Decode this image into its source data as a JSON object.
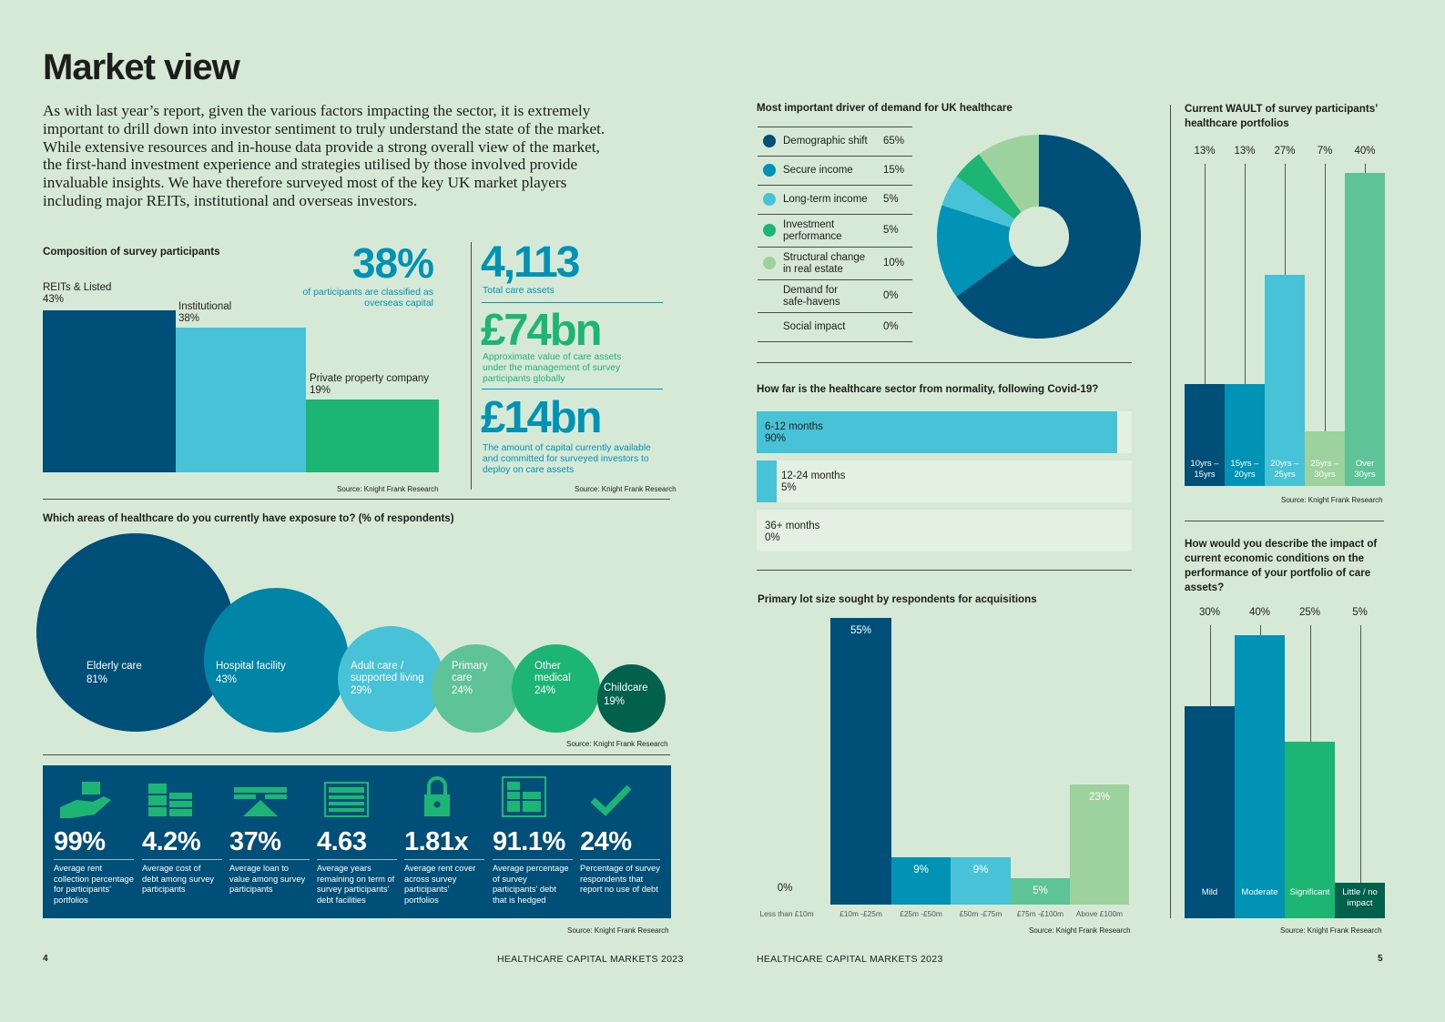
{
  "title": "Market view",
  "intro": "As with last year’s report, given the various factors impacting the sector, it is extremely important to drill down into investor sentiment to truly understand the state of the market. While extensive resources and in-house data provide a strong overall view of the market, the first-hand investment experience and strategies utilised by those involved provide invaluable insights. We have therefore surveyed most of the key UK market players including major REITs, institutional and overseas investors.",
  "source": "Source: Knight Frank Research",
  "composition": {
    "title": "Composition of survey participants",
    "items": [
      {
        "name": "REITs & Listed",
        "pct": "43%"
      },
      {
        "name": "Institutional",
        "pct": "38%"
      },
      {
        "name": "Private property company",
        "pct": "19%"
      }
    ]
  },
  "stats": {
    "overseas_value": "38%",
    "overseas_label": "of participants are classified as overseas capital",
    "care_assets_value": "4,113",
    "care_assets_label": "Total care assets",
    "value_74": "£74bn",
    "value_74_label": "Approximate value of care assets under the management of survey participants globally",
    "value_14": "£14bn",
    "value_14_label": "The amount of capital currently available and committed for surveyed investors to deploy on care assets"
  },
  "exposure": {
    "title": "Which areas of healthcare do you currently have exposure to? (% of respondents)",
    "items": [
      {
        "name": "Elderly care",
        "pct": "81%"
      },
      {
        "name": "Hospital facility",
        "pct": "43%"
      },
      {
        "name": "Adult care / supported living",
        "pct": "29%"
      },
      {
        "name": "Primary care",
        "pct": "24%"
      },
      {
        "name": "Other medical",
        "pct": "24%"
      },
      {
        "name": "Childcare",
        "pct": "19%"
      }
    ]
  },
  "kpis": [
    {
      "icon": "hand-money-icon",
      "value": "99%",
      "label": "Average rent collection percentage for participants’ portfolios"
    },
    {
      "icon": "buildings-icon",
      "value": "4.2%",
      "label": "Average cost of debt among survey participants"
    },
    {
      "icon": "scale-icon",
      "value": "37%",
      "label": "Average loan to value among survey participants"
    },
    {
      "icon": "calendar-icon",
      "value": "4.63",
      "label": "Average years remaining on term of survey participants’ debt facilities"
    },
    {
      "icon": "padlock-icon",
      "value": "1.81x",
      "label": "Average rent cover across survey participants’ portfolios"
    },
    {
      "icon": "document-icon",
      "value": "91.1%",
      "label": "Average percentage of survey participants’ debt that is hedged"
    },
    {
      "icon": "checkmark-icon",
      "value": "24%",
      "label": "Percentage of survey respondents that report no use of debt"
    }
  ],
  "footer": {
    "left_page": "4",
    "left_title": "HEALTHCARE CAPITAL MARKETS 2023",
    "right_title": "HEALTHCARE CAPITAL MARKETS 2023",
    "right_page": "5"
  },
  "colors": {
    "navy": "#004f78",
    "teal": "#0093b5",
    "sky": "#47c2d6",
    "green": "#1db574",
    "mint": "#5fc398",
    "pale": "#9dd29f",
    "dark_green": "#00624c"
  },
  "chart_data": [
    {
      "type": "bar",
      "title": "Composition of survey participants",
      "categories": [
        "REITs & Listed",
        "Institutional",
        "Private property company"
      ],
      "values": [
        43,
        38,
        19
      ]
    },
    {
      "type": "pie",
      "title": "Most important driver of demand for UK healthcare",
      "categories": [
        "Demographic shift",
        "Secure income",
        "Long-term income",
        "Investment performance",
        "Structural change in real estate",
        "Demand for safe-havens",
        "Social impact"
      ],
      "values": [
        65,
        15,
        5,
        5,
        10,
        0,
        0
      ],
      "labels": [
        "65%",
        "15%",
        "5%",
        "5%",
        "10%",
        "0%",
        "0%"
      ],
      "colors": [
        "#004f78",
        "#0093b5",
        "#47c2d6",
        "#1db574",
        "#9dd29f",
        "#004f78",
        "#004f78"
      ]
    },
    {
      "type": "bar",
      "title": "How far is the healthcare sector from normality, following Covid-19?",
      "categories": [
        "6-12 months",
        "12-24 months",
        "36+ months"
      ],
      "values": [
        90,
        5,
        0
      ],
      "labels": [
        "90%",
        "5%",
        "0%"
      ]
    },
    {
      "type": "bar",
      "title": "Primary lot size sought by respondents for acquisitions",
      "categories": [
        "Less than £10m",
        "£10m -£25m",
        "£25m -£50m",
        "£50m -£75m",
        "£75m -£100m",
        "Above £100m"
      ],
      "values": [
        0,
        55,
        9,
        9,
        5,
        23
      ],
      "labels": [
        "0%",
        "55%",
        "9%",
        "9%",
        "5%",
        "23%"
      ],
      "ylim": [
        0,
        55
      ]
    },
    {
      "type": "bar",
      "title": "Current WAULT of survey participants’ healthcare portfolios",
      "categories": [
        "10yrs – 15yrs",
        "15yrs – 20yrs",
        "20yrs – 25yrs",
        "25yrs – 30yrs",
        "Over 30yrs"
      ],
      "values": [
        13,
        13,
        27,
        7,
        40
      ],
      "labels": [
        "13%",
        "13%",
        "27%",
        "7%",
        "40%"
      ],
      "ylim": [
        0,
        40
      ]
    },
    {
      "type": "bar",
      "title": "How would you describe the impact of current economic conditions on the performance of your portfolio of care assets?",
      "categories": [
        "Mild",
        "Moderate",
        "Significant",
        "Little / no impact"
      ],
      "values": [
        30,
        40,
        25,
        5
      ],
      "labels": [
        "30%",
        "40%",
        "25%",
        "5%"
      ],
      "ylim": [
        0,
        40
      ]
    }
  ]
}
